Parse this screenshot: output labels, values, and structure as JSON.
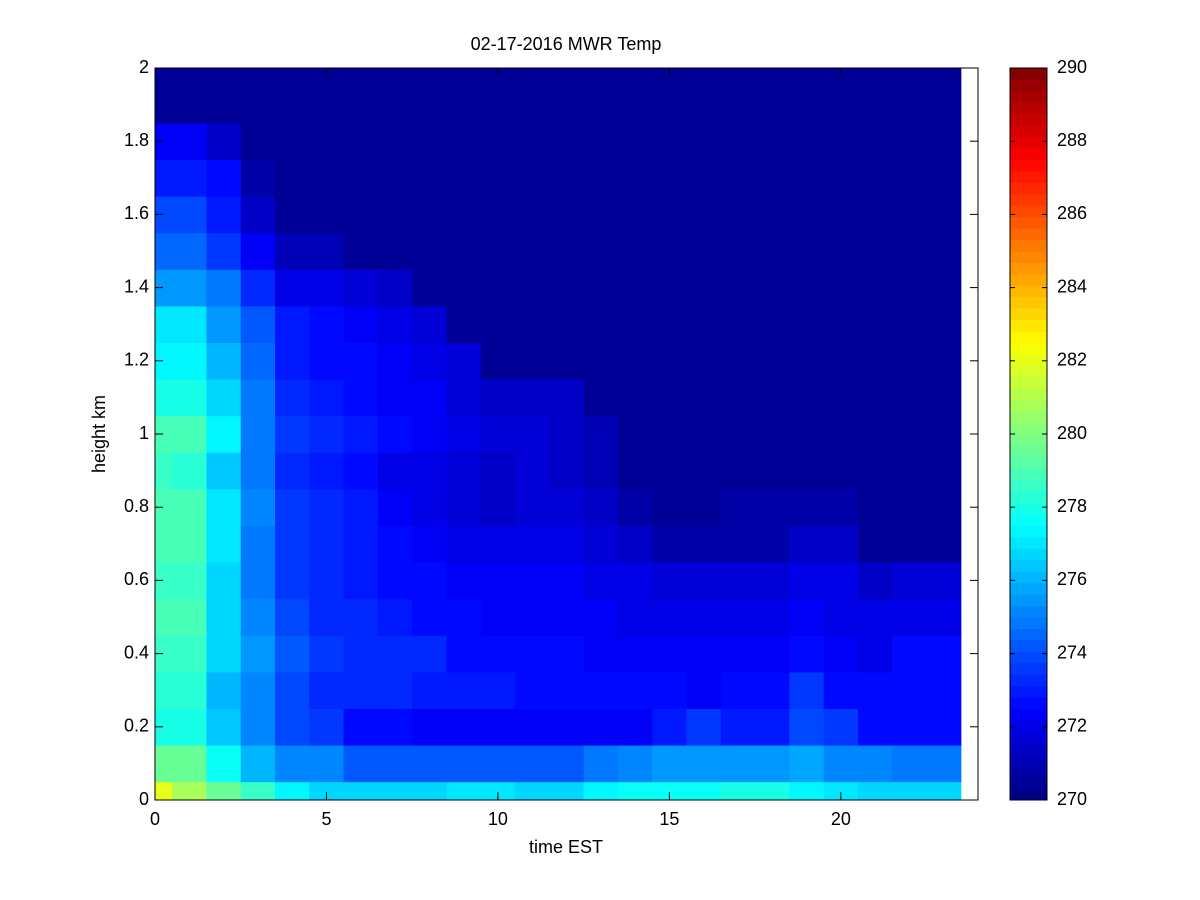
{
  "chart_data": {
    "type": "heatmap",
    "title": "02-17-2016 MWR Temp",
    "x_label": "time EST",
    "y_label": "height km",
    "colormap": "jet",
    "clim": [
      270,
      290
    ],
    "cticks": [
      270,
      272,
      274,
      276,
      278,
      280,
      282,
      284,
      286,
      288,
      290
    ],
    "xlim": [
      0,
      24
    ],
    "xticks": [
      0,
      5,
      10,
      15,
      20
    ],
    "ylim": [
      0,
      2
    ],
    "yticks": [
      0,
      0.2,
      0.4,
      0.6,
      0.8,
      1,
      1.2,
      1.4,
      1.6,
      1.8,
      2
    ],
    "x_edges": [
      0,
      0.5,
      1.5,
      2.5,
      3.5,
      4.5,
      5.5,
      6.5,
      7.5,
      8.5,
      9.5,
      10.5,
      11.5,
      12.5,
      13.5,
      14.5,
      15.5,
      16.5,
      17.5,
      18.5,
      19.5,
      20.5,
      21.5,
      22.5,
      23.5
    ],
    "y_edges": [
      0,
      0.05,
      0.15,
      0.25,
      0.35,
      0.45,
      0.55,
      0.65,
      0.75,
      0.85,
      0.95,
      1.05,
      1.15,
      1.25,
      1.35,
      1.45,
      1.55,
      1.65,
      1.75,
      1.85,
      2
    ],
    "z": [
      [
        282,
        280.8,
        279.5,
        278.7,
        277.2,
        276.8,
        276.6,
        276.8,
        276.8,
        277,
        277,
        276.8,
        276.7,
        277.2,
        277.6,
        277.8,
        277.8,
        278,
        278,
        277.4,
        277,
        276.8,
        276.6,
        276.6
      ],
      [
        279.5,
        279.5,
        277.8,
        276,
        275.3,
        275,
        274.2,
        274.2,
        274.2,
        274.3,
        274.3,
        274.3,
        274.3,
        274.8,
        275.2,
        275.5,
        275.5,
        275.5,
        275.5,
        275.7,
        275.3,
        275,
        274.7,
        274.7
      ],
      [
        278,
        278,
        276.3,
        275.2,
        274,
        273.5,
        272.5,
        272.5,
        272.3,
        272.3,
        272.3,
        272.3,
        272.3,
        272.3,
        272.3,
        273,
        273.5,
        272.9,
        272.9,
        273.8,
        273.5,
        272.8,
        272.8,
        272.8
      ],
      [
        278.2,
        278.2,
        276.2,
        275,
        274,
        273.4,
        273.2,
        273.2,
        273,
        273,
        273,
        272.8,
        272.8,
        272.8,
        272.8,
        272.7,
        272.3,
        272.6,
        272.6,
        273.5,
        272.6,
        272.6,
        272.6,
        272.6
      ],
      [
        278.6,
        278.6,
        276.6,
        275.5,
        274.1,
        273.5,
        273.3,
        273.3,
        273.3,
        272.8,
        272.5,
        272.5,
        272.5,
        272.4,
        272.4,
        272.4,
        272.4,
        272.4,
        272.4,
        272.7,
        272.2,
        271.9,
        272.5,
        272.5
      ],
      [
        278.8,
        278.8,
        276.7,
        275,
        273.8,
        273.2,
        273.2,
        273,
        272.8,
        272.5,
        272.3,
        272.3,
        272.3,
        272.2,
        272.1,
        272.1,
        272.1,
        272.1,
        272.1,
        272.3,
        272,
        271.9,
        271.9,
        271.9
      ],
      [
        278.7,
        278.7,
        276.8,
        274.8,
        273.6,
        273.3,
        273,
        272.8,
        272.5,
        272.3,
        272.3,
        272.3,
        272.2,
        272,
        271.9,
        271.7,
        271.6,
        271.6,
        271.8,
        271.9,
        271.9,
        271.4,
        271.6,
        271.6
      ],
      [
        278.9,
        278.9,
        276.9,
        274.8,
        273.5,
        273.2,
        273,
        272.6,
        272.4,
        272.1,
        272.1,
        272.1,
        272,
        271.8,
        271.5,
        270.9,
        270.9,
        270.9,
        270.9,
        271.3,
        271.3,
        270.6,
        270.6,
        270.6
      ],
      [
        278.8,
        278.8,
        276.9,
        275,
        273.5,
        273.3,
        272.9,
        272.4,
        272.1,
        271.7,
        271.3,
        271.7,
        271.7,
        271.4,
        270.9,
        270.5,
        270.5,
        270.8,
        270.8,
        270.7,
        270.7,
        270.5,
        270.5,
        270.5
      ],
      [
        278.6,
        278.3,
        276.3,
        274.7,
        273.3,
        273,
        272.7,
        272.1,
        271.9,
        271.6,
        271.4,
        271.6,
        271.4,
        271.2,
        270.5,
        270.4,
        270.4,
        270.4,
        270.4,
        270.4,
        270.4,
        270.4,
        270.4,
        270.4
      ],
      [
        279,
        278.8,
        277.2,
        274.9,
        273.6,
        273.3,
        273,
        272.5,
        272.3,
        272,
        271.6,
        271.8,
        271.4,
        271.2,
        270.5,
        270.4,
        270.4,
        270.4,
        270.4,
        270.4,
        270.4,
        270.4,
        270.4,
        270.4
      ],
      [
        278.1,
        278.1,
        276.6,
        274.8,
        273.3,
        273,
        272.6,
        272.4,
        272.2,
        271.8,
        271.5,
        271.5,
        271.3,
        270.4,
        270.4,
        270.4,
        270.4,
        270.4,
        270.4,
        270.4,
        270.4,
        270.4,
        270.4,
        270.4
      ],
      [
        277.4,
        277.4,
        276.2,
        274.5,
        273,
        272.7,
        272.5,
        272.3,
        272.1,
        271.6,
        270.6,
        270.4,
        270.4,
        270.4,
        270.4,
        270.4,
        270.4,
        270.4,
        270.4,
        270.4,
        270.4,
        270.4,
        270.4,
        270.4
      ],
      [
        277,
        277,
        275.6,
        274.2,
        272.9,
        272.6,
        272.3,
        271.9,
        271.6,
        270.5,
        270.4,
        270.4,
        270.4,
        270.4,
        270.4,
        270.4,
        270.4,
        270.4,
        270.4,
        270.4,
        270.4,
        270.4,
        270.4,
        270.4
      ],
      [
        275.5,
        275.6,
        274.7,
        273.2,
        272.1,
        271.9,
        271.8,
        271.3,
        270.6,
        270.4,
        270.4,
        270.4,
        270.4,
        270.4,
        270.4,
        270.4,
        270.4,
        270.4,
        270.4,
        270.4,
        270.4,
        270.4,
        270.4,
        270.4
      ],
      [
        274.5,
        274.5,
        273.7,
        272.4,
        271.2,
        271.1,
        270.5,
        270.4,
        270.4,
        270.4,
        270.4,
        270.4,
        270.4,
        270.4,
        270.4,
        270.4,
        270.4,
        270.4,
        270.4,
        270.4,
        270.4,
        270.4,
        270.4,
        270.4
      ],
      [
        274,
        274,
        273,
        271.5,
        270.6,
        270.5,
        270.4,
        270.4,
        270.4,
        270.4,
        270.4,
        270.4,
        270.4,
        270.4,
        270.4,
        270.4,
        270.4,
        270.4,
        270.4,
        270.4,
        270.4,
        270.4,
        270.4,
        270.4
      ],
      [
        273.1,
        273.1,
        272.5,
        270.7,
        270.4,
        270.4,
        270.4,
        270.4,
        270.4,
        270.4,
        270.4,
        270.4,
        270.4,
        270.4,
        270.4,
        270.4,
        270.4,
        270.4,
        270.4,
        270.4,
        270.4,
        270.4,
        270.4,
        270.4
      ],
      [
        272.4,
        272.4,
        271.4,
        270.6,
        270.4,
        270.4,
        270.4,
        270.4,
        270.4,
        270.4,
        270.4,
        270.4,
        270.4,
        270.4,
        270.4,
        270.4,
        270.4,
        270.4,
        270.4,
        270.4,
        270.4,
        270.4,
        270.4,
        270.4
      ],
      [
        270.4,
        270.4,
        270.4,
        270.4,
        270.4,
        270.4,
        270.4,
        270.4,
        270.4,
        270.4,
        270.4,
        270.4,
        270.4,
        270.4,
        270.4,
        270.4,
        270.4,
        270.4,
        270.4,
        270.4,
        270.4,
        270.4,
        270.4,
        270.4
      ]
    ]
  }
}
